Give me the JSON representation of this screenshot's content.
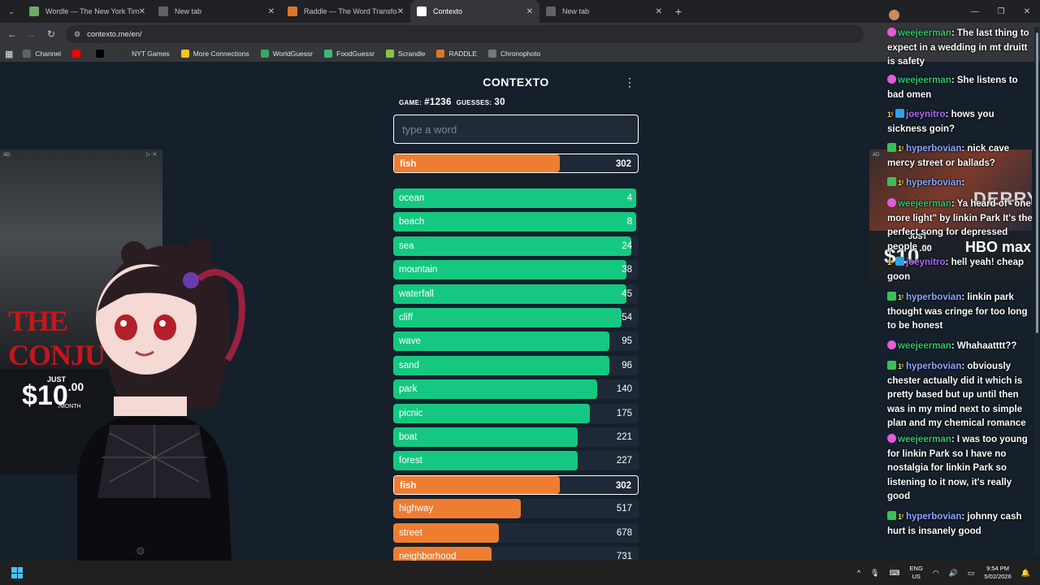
{
  "browser": {
    "tabs": [
      {
        "title": "Wordle — The New York Times",
        "color": "#6aaa64",
        "active": false
      },
      {
        "title": "New tab",
        "color": "#5f6368",
        "active": false
      },
      {
        "title": "Raddle — The Word Transform",
        "color": "#d9782c",
        "active": false
      },
      {
        "title": "Contexto",
        "color": "#ffffff",
        "active": true
      },
      {
        "title": "New tab",
        "color": "#5f6368",
        "active": false
      }
    ],
    "url": "contexto.me/en/",
    "bookmarks": [
      {
        "label": "Channel",
        "color": "#5f6368"
      },
      {
        "label": "",
        "color": "#ff0000",
        "icon": "youtube-icon"
      },
      {
        "label": "",
        "color": "#000000",
        "icon": "x-icon"
      },
      {
        "label": "NYT Games",
        "color": "#333333"
      },
      {
        "label": "More Connections",
        "color": "#f3c623"
      },
      {
        "label": "WorldGuessr",
        "color": "#3aa75d"
      },
      {
        "label": "FoodGuessr",
        "color": "#3cb878"
      },
      {
        "label": "Scrandle",
        "color": "#8bc34a"
      },
      {
        "label": "RADDLE",
        "color": "#d9782c"
      },
      {
        "label": "Chronophoto",
        "color": "#777777"
      }
    ]
  },
  "game": {
    "title": "CONTEXTO",
    "game_label": "GAME:",
    "game_number": "#1236",
    "guesses_label": "GUESSES:",
    "guesses": "30",
    "input_placeholder": "type a word",
    "last_guess": {
      "word": "fish",
      "rank": 302,
      "fill": 0.68,
      "color": "orange"
    },
    "guesses_list": [
      {
        "word": "ocean",
        "rank": 4,
        "fill": 0.99,
        "color": "green"
      },
      {
        "word": "beach",
        "rank": 8,
        "fill": 0.99,
        "color": "green"
      },
      {
        "word": "sea",
        "rank": 24,
        "fill": 0.97,
        "color": "green"
      },
      {
        "word": "mountain",
        "rank": 38,
        "fill": 0.95,
        "color": "green"
      },
      {
        "word": "waterfall",
        "rank": 45,
        "fill": 0.95,
        "color": "green"
      },
      {
        "word": "cliff",
        "rank": 54,
        "fill": 0.93,
        "color": "green"
      },
      {
        "word": "wave",
        "rank": 95,
        "fill": 0.88,
        "color": "green"
      },
      {
        "word": "sand",
        "rank": 96,
        "fill": 0.88,
        "color": "green"
      },
      {
        "word": "park",
        "rank": 140,
        "fill": 0.83,
        "color": "green"
      },
      {
        "word": "picnic",
        "rank": 175,
        "fill": 0.8,
        "color": "green"
      },
      {
        "word": "boat",
        "rank": 221,
        "fill": 0.75,
        "color": "green"
      },
      {
        "word": "forest",
        "rank": 227,
        "fill": 0.75,
        "color": "green"
      },
      {
        "word": "fish",
        "rank": 302,
        "fill": 0.68,
        "color": "orange",
        "highlight": true
      },
      {
        "word": "highway",
        "rank": 517,
        "fill": 0.52,
        "color": "orange"
      },
      {
        "word": "street",
        "rank": 678,
        "fill": 0.43,
        "color": "orange"
      },
      {
        "word": "neighborhood",
        "rank": 731,
        "fill": 0.4,
        "color": "orange"
      }
    ]
  },
  "ads": {
    "left": {
      "tag": "AD",
      "brand": "THE CONJU",
      "just": "JUST",
      "price": "$10",
      "cents": ".00",
      "month": "/MONTH"
    },
    "right": {
      "tag": "AD",
      "title": "DERRY",
      "just": "JUST",
      "price": "$10",
      "cents": ".00",
      "brand": "HBO max"
    }
  },
  "chat": [
    {
      "badges": [
        "heart"
      ],
      "user": "weejeerman",
      "ucolor": "u1",
      "text": "The last thing to expect in a wedding in mt druitt is safety"
    },
    {
      "badges": [
        "heart"
      ],
      "user": "weejeerman",
      "ucolor": "u1",
      "text": "She listens to bad omen"
    },
    {
      "badges": [
        "one",
        "blue"
      ],
      "user": "joeynitro",
      "ucolor": "u2",
      "text": "hows you sickness goin?"
    },
    {
      "badges": [
        "check",
        "one"
      ],
      "user": "hyperbovian",
      "ucolor": "u3",
      "text": "nick cave mercy street or ballads?"
    },
    {
      "badges": [
        "check",
        "one"
      ],
      "user": "hyperbovian",
      "ucolor": "u3",
      "text": ""
    },
    {
      "badges": [
        "heart"
      ],
      "user": "weejeerman",
      "ucolor": "u1",
      "text": "Ya heard of \"one more light\" by linkin Park It's the perfect song for depressed people"
    },
    {
      "badges": [
        "one",
        "blue"
      ],
      "user": "joeynitro",
      "ucolor": "u2",
      "text": "hell yeah! cheap goon"
    },
    {
      "badges": [
        "check",
        "one"
      ],
      "user": "hyperbovian",
      "ucolor": "u3",
      "text": "linkin park thought was cringe for too long to be honest"
    },
    {
      "badges": [
        "heart"
      ],
      "user": "weejeerman",
      "ucolor": "u1",
      "text": "Whahaatttt??"
    },
    {
      "badges": [
        "check",
        "one"
      ],
      "user": "hyperbovian",
      "ucolor": "u3",
      "text": "obviously chester actually did it which is pretty based but up until then was in my mind next to simple plan and my chemical romance"
    },
    {
      "badges": [
        "heart"
      ],
      "user": "weejeerman",
      "ucolor": "u1",
      "text": "I was too young for linkin Park so I have no nostalgia for linkin Park so listening to it now, it's really good"
    },
    {
      "badges": [
        "check",
        "one"
      ],
      "user": "hyperbovian",
      "ucolor": "u3",
      "text": "johnny cash hurt is insanely good"
    }
  ],
  "taskbar": {
    "lang_top": "ENG",
    "lang_bottom": "US",
    "time": "9:54 PM",
    "date": "5/02/2026"
  }
}
